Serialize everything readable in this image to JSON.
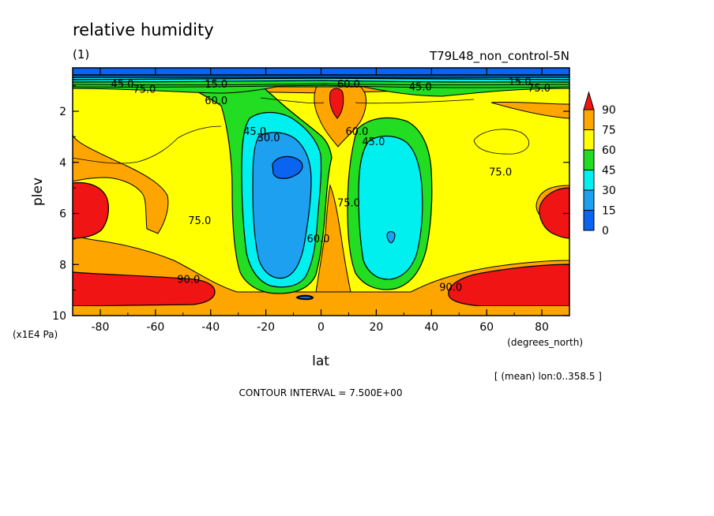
{
  "chart_data": {
    "type": "heatmap",
    "title": "relative humidity",
    "subtitle": "(1)",
    "experiment": "T79L48_non_control-5N",
    "xlabel": "lat",
    "xunits": "(degrees_north)",
    "ylabel": "plev",
    "yunits": "(x1E4 Pa)",
    "xlim": [
      -90,
      90
    ],
    "ylim": [
      10,
      0.3
    ],
    "xticks": [
      -80,
      -60,
      -40,
      -20,
      0,
      20,
      40,
      60,
      80
    ],
    "yticks": [
      2,
      4,
      6,
      8,
      10
    ],
    "mean_note": "[ (mean) lon:0..358.5 ]",
    "contour_interval_text": "CONTOUR INTERVAL = 7.500E+00",
    "contour_interval": 7.5,
    "colorbar": {
      "levels": [
        0,
        15,
        30,
        45,
        60,
        75,
        90
      ],
      "colors": [
        "#0a64f0",
        "#1ea0f0",
        "#00f0f0",
        "#22dd22",
        "#ffff00",
        "#ffa500",
        "#f01414"
      ],
      "extend": "max",
      "overflow_color": "#f01414"
    },
    "contour_labels": [
      {
        "text": "15.0",
        "lat": -38,
        "plev": 0.95
      },
      {
        "text": "45.0",
        "lat": -72,
        "plev": 0.95
      },
      {
        "text": "75.0",
        "lat": -64,
        "plev": 1.15
      },
      {
        "text": "60.0",
        "lat": -38,
        "plev": 1.6
      },
      {
        "text": "45.0",
        "lat": -24,
        "plev": 2.8
      },
      {
        "text": "30.0",
        "lat": -19,
        "plev": 3.05
      },
      {
        "text": "60.0",
        "lat": 10,
        "plev": 0.95
      },
      {
        "text": "45.0",
        "lat": 36,
        "plev": 1.05
      },
      {
        "text": "15.0",
        "lat": 72,
        "plev": 0.85
      },
      {
        "text": "75.0",
        "lat": 79,
        "plev": 1.1
      },
      {
        "text": "60.0",
        "lat": 13,
        "plev": 2.8
      },
      {
        "text": "45.0",
        "lat": 19,
        "plev": 3.2
      },
      {
        "text": "75.0",
        "lat": 65,
        "plev": 4.4
      },
      {
        "text": "75.0",
        "lat": 10,
        "plev": 5.6
      },
      {
        "text": "75.0",
        "lat": -44,
        "plev": 6.3
      },
      {
        "text": "60.0",
        "lat": -1,
        "plev": 7.0
      },
      {
        "text": "90.0",
        "lat": -48,
        "plev": 8.6
      },
      {
        "text": "90.0",
        "lat": 47,
        "plev": 8.9
      }
    ]
  }
}
